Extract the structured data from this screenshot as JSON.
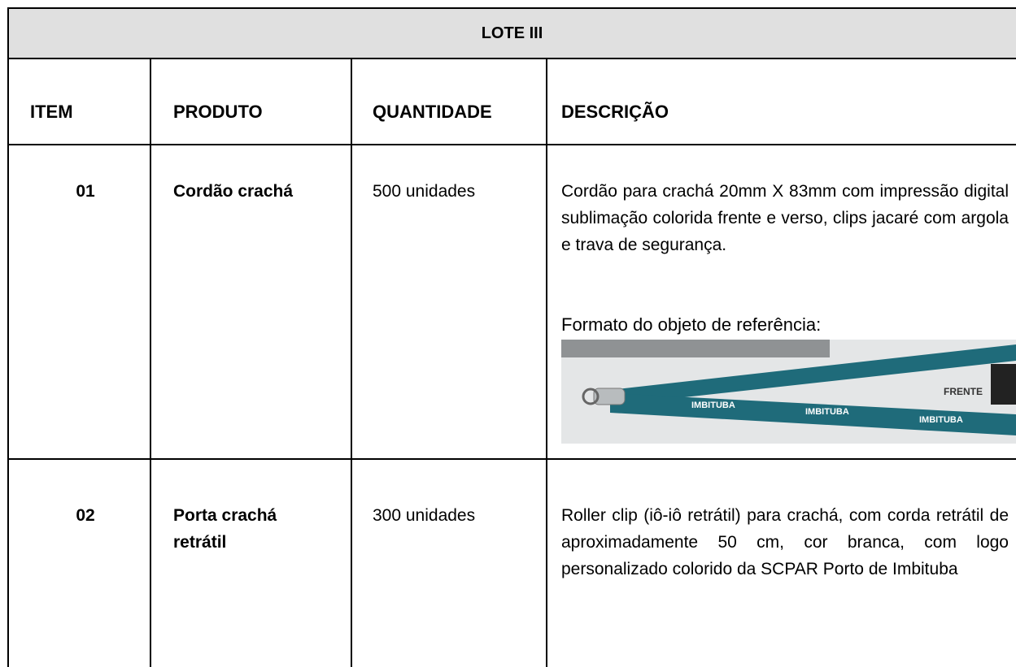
{
  "table": {
    "title": "LOTE III",
    "header": [
      "ITEM",
      "PRODUTO",
      "QUANTIDADE",
      "DESCRIÇÃO"
    ],
    "rows": [
      {
        "item": "01",
        "product": "Cordão crachá",
        "quantity": "500 unidades",
        "description": "Cordão para crachá 20mm X 83mm com impressão digital sublimação colorida frente e verso, clips jacaré com argola e trava de segurança.",
        "reference_label": "Formato do objeto de referência:"
      },
      {
        "item": "02",
        "product": "Porta crachá retrátil",
        "quantity": "300 unidades",
        "description": "Roller clip (iô-iô retrátil) para crachá, com corda retrátil de aproximadamente 50 cm, cor branca, com logo personalizado colorido da SCPAR Porto de Imbituba"
      }
    ]
  },
  "image": {
    "label": "FRENTE",
    "brand": "IMBITUBA"
  }
}
